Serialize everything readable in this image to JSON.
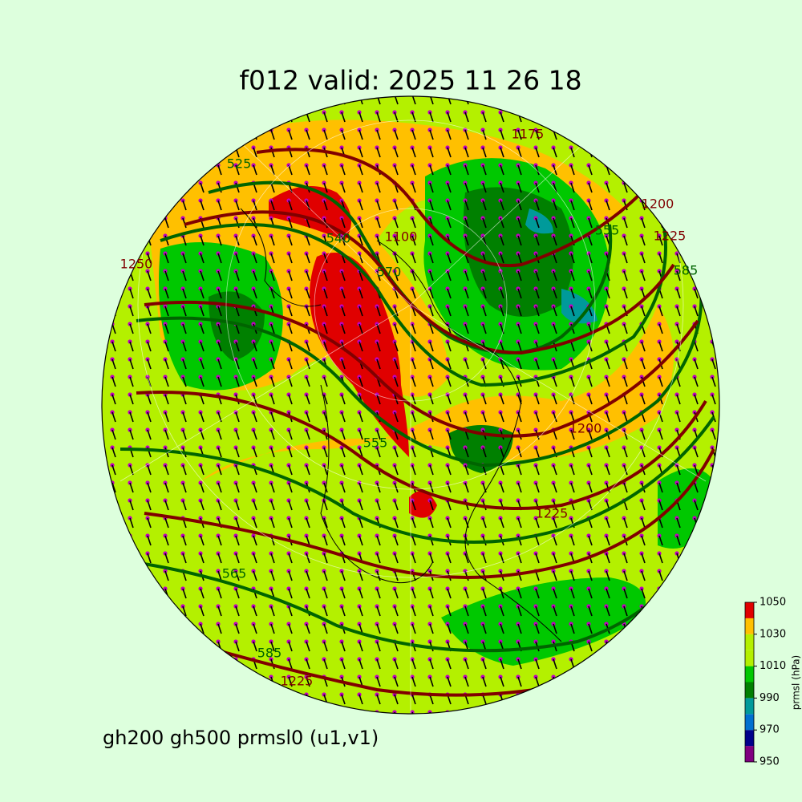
{
  "title": "f012 valid:   2025 11 26 18",
  "subtitle": "gh200 gh500 prmsl0 (u1,v1)",
  "colorbar": {
    "label": "prmsl (hPa)",
    "lim": [
      950,
      1050
    ],
    "ticks": [
      950,
      970,
      990,
      1010,
      1030,
      1050
    ],
    "levels": [
      950,
      960,
      970,
      980,
      990,
      1000,
      1010,
      1020,
      1030,
      1040,
      1050
    ],
    "colors": [
      "#800080",
      "#00008b",
      "#0070d0",
      "#009a9a",
      "#008000",
      "#00c800",
      "#b4f000",
      "#b4f000",
      "#ffc000",
      "#e00000"
    ]
  },
  "gh500": {
    "color": "#006400",
    "labels": [
      540,
      570,
      555,
      555,
      565,
      585,
      585,
      525
    ]
  },
  "gh200": {
    "color": "#800000",
    "labels": [
      1100,
      1175,
      1200,
      1225,
      1225,
      1250,
      1225,
      1200
    ]
  }
}
